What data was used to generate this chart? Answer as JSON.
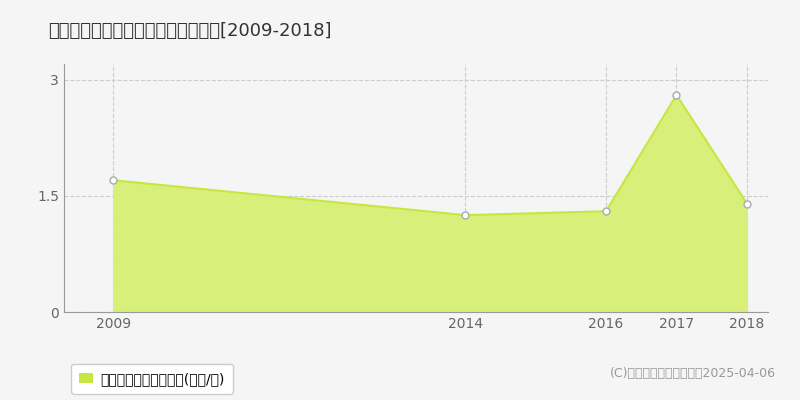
{
  "title": "中新川郡立山町塚越　土地価格推移[2009-2018]",
  "years": [
    2009,
    2014,
    2016,
    2017,
    2018
  ],
  "values": [
    1.7,
    1.25,
    1.3,
    2.8,
    1.4
  ],
  "xlim": [
    2008.3,
    2018.3
  ],
  "ylim": [
    0,
    3.2
  ],
  "yticks": [
    0,
    1.5,
    3
  ],
  "xticks": [
    2009,
    2014,
    2016,
    2017,
    2018
  ],
  "line_color": "#c8e641",
  "fill_color": "#d8ef7a",
  "marker_color": "#ffffff",
  "marker_edge_color": "#aaaaaa",
  "grid_color": "#cccccc",
  "background_color": "#f5f5f5",
  "legend_label": "土地価格　平均坪単価(万円/坪)",
  "copyright_text": "(C)土地価格ドットコム　2025-04-06",
  "title_fontsize": 13,
  "axis_fontsize": 10,
  "legend_fontsize": 10,
  "copyright_fontsize": 9
}
